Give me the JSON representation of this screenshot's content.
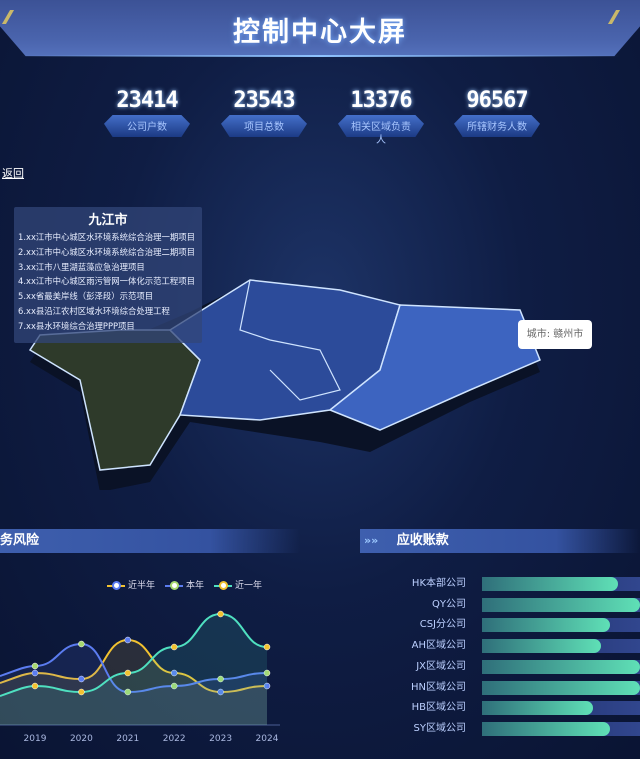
{
  "header": {
    "title": "控制中心大屏"
  },
  "stats": [
    {
      "value": "23414",
      "label": "公司户数"
    },
    {
      "value": "23543",
      "label": "项目总数"
    },
    {
      "value": "13376",
      "label": "相关区域负责人"
    },
    {
      "value": "96567",
      "label": "所辖财务人数"
    }
  ],
  "back_label": "返回",
  "map": {
    "info_panel": {
      "title": "九江市",
      "items": [
        "1.xx江市中心城区水环境系统综合治理一期项目",
        "2.xx江市中心城区水环境系统综合治理二期项目",
        "3.xx江市八里湖蓝藻应急治理项目",
        "4.xx江市中心城区雨污管网一体化示范工程项目",
        "5.xx省最美岸线（彭泽段）示范项目",
        "6.xx县沿江农村区域水环境综合处理工程",
        "7.xx县水环境综合治理PPP项目"
      ]
    },
    "hover_tooltip": "城市: 赣州市"
  },
  "risk_panel": {
    "title": "务风险"
  },
  "receivable_panel": {
    "title": "应收账款"
  },
  "chart_data": [
    {
      "type": "line",
      "categories": [
        "2019",
        "2020",
        "2021",
        "2022",
        "2023",
        "2024"
      ],
      "series": [
        {
          "name": "近半年",
          "color": "#f2c230",
          "values": [
            52,
            46,
            85,
            52,
            33,
            39
          ]
        },
        {
          "name": "本年",
          "color": "#5b7cf0",
          "values": [
            59,
            81,
            33,
            39,
            46,
            52
          ]
        },
        {
          "name": "近一年",
          "color": "#4fe0c0",
          "values": [
            39,
            33,
            52,
            78,
            111,
            78
          ]
        }
      ],
      "ylim": [
        0,
        120
      ],
      "legend": "top-right",
      "smooth": true,
      "area": true
    },
    {
      "type": "bar",
      "orientation": "horizontal",
      "categories": [
        "HK本部公司",
        "QY公司",
        "CSJ分公司",
        "AH区域公司",
        "JX区域公司",
        "HN区域公司",
        "HB区域公司",
        "SY区域公司"
      ],
      "values": [
        0.86,
        1.0,
        0.81,
        0.75,
        1.0,
        1.0,
        0.7,
        0.81
      ],
      "color": "#5fe0b6"
    }
  ]
}
